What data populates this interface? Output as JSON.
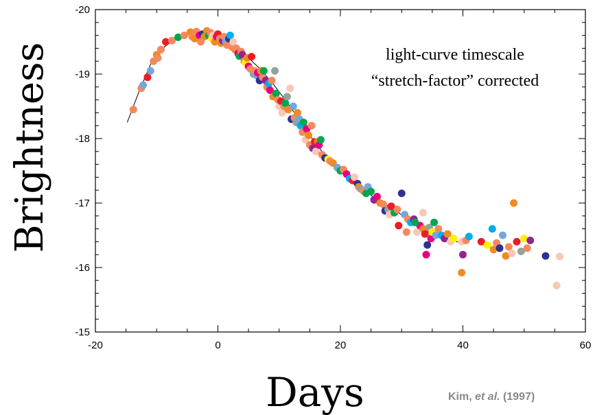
{
  "chart_data": {
    "type": "scatter",
    "xlabel": "Days",
    "ylabel": "Brightness",
    "xlim": [
      -20,
      60
    ],
    "ylim": [
      -20,
      -15
    ],
    "y_inverted": true,
    "xticks": [
      "-20",
      "0",
      "20",
      "40",
      "60"
    ],
    "yticks": [
      "-20",
      "-19",
      "-18",
      "-17",
      "-16",
      "-15"
    ],
    "annotation": [
      "light-curve timescale",
      "“stretch-factor” corrected"
    ],
    "citation": {
      "pre": "Kim, ",
      "emph": "et al.",
      "post": " (1997)"
    },
    "palette": [
      "#f4895f",
      "#e8007e",
      "#f08a24",
      "#00a651",
      "#2e3192",
      "#fff200",
      "#00aeef",
      "#f7c8b4",
      "#92278f",
      "#93a39a",
      "#74a7db",
      "#ed1c24"
    ],
    "template_curve": [
      [
        -14.8,
        -18.25
      ],
      [
        -13,
        -18.7
      ],
      [
        -11,
        -19.15
      ],
      [
        -9,
        -19.4
      ],
      [
        -7,
        -19.55
      ],
      [
        -5,
        -19.62
      ],
      [
        -3,
        -19.63
      ],
      [
        -1,
        -19.6
      ],
      [
        1,
        -19.52
      ],
      [
        3,
        -19.4
      ],
      [
        5,
        -19.25
      ],
      [
        7,
        -19.07
      ],
      [
        9,
        -18.85
      ],
      [
        11,
        -18.6
      ],
      [
        13,
        -18.33
      ],
      [
        15,
        -18.05
      ],
      [
        17,
        -17.8
      ],
      [
        19,
        -17.58
      ],
      [
        21,
        -17.4
      ],
      [
        23,
        -17.25
      ],
      [
        25,
        -17.12
      ],
      [
        27,
        -17.0
      ],
      [
        29,
        -16.88
      ],
      [
        31,
        -16.75
      ],
      [
        33,
        -16.62
      ],
      [
        35,
        -16.52
      ],
      [
        37,
        -16.45
      ],
      [
        39,
        -16.4
      ],
      [
        40.5,
        -16.38
      ]
    ],
    "points": [
      [
        -13.8,
        -18.45,
        0
      ],
      [
        -12.5,
        -18.78,
        0
      ],
      [
        -12.2,
        -18.83,
        10
      ],
      [
        -11.5,
        -18.95,
        11
      ],
      [
        -11,
        -19.05,
        10
      ],
      [
        -10.5,
        -19.2,
        0
      ],
      [
        -10,
        -19.3,
        2
      ],
      [
        -9.8,
        -19.25,
        0
      ],
      [
        -9.3,
        -19.38,
        0
      ],
      [
        -8.5,
        -19.5,
        11
      ],
      [
        -7.5,
        -19.52,
        0
      ],
      [
        -6.5,
        -19.57,
        3
      ],
      [
        -5.5,
        -19.6,
        0
      ],
      [
        -4.5,
        -19.65,
        2
      ],
      [
        -4.2,
        -19.58,
        0
      ],
      [
        -3.8,
        -19.55,
        2
      ],
      [
        -3.5,
        -19.66,
        0
      ],
      [
        -3,
        -19.6,
        1
      ],
      [
        -2.8,
        -19.5,
        0
      ],
      [
        -2.5,
        -19.62,
        4
      ],
      [
        -2.2,
        -19.58,
        2
      ],
      [
        -1.8,
        -19.67,
        2
      ],
      [
        -1.5,
        -19.6,
        3
      ],
      [
        -1.2,
        -19.64,
        0
      ],
      [
        -1,
        -19.55,
        5
      ],
      [
        -0.8,
        -19.6,
        7
      ],
      [
        -0.5,
        -19.5,
        2
      ],
      [
        -0.2,
        -19.58,
        1
      ],
      [
        0,
        -19.62,
        11
      ],
      [
        0.3,
        -19.55,
        0
      ],
      [
        0.5,
        -19.48,
        2
      ],
      [
        0.8,
        -19.52,
        8
      ],
      [
        1,
        -19.58,
        0
      ],
      [
        1.3,
        -19.5,
        10
      ],
      [
        1.5,
        -19.45,
        0
      ],
      [
        1.8,
        -19.55,
        4
      ],
      [
        2,
        -19.6,
        6
      ],
      [
        2.3,
        -19.42,
        0
      ],
      [
        2.5,
        -19.5,
        7
      ],
      [
        2.8,
        -19.38,
        2
      ],
      [
        3,
        -19.4,
        0
      ],
      [
        3.3,
        -19.32,
        1
      ],
      [
        3.5,
        -19.28,
        3
      ],
      [
        3.8,
        -19.35,
        0
      ],
      [
        4,
        -19.3,
        8
      ],
      [
        4.3,
        -19.2,
        0
      ],
      [
        4.5,
        -19.18,
        5
      ],
      [
        4.8,
        -19.25,
        2
      ],
      [
        5,
        -19.12,
        1
      ],
      [
        5.3,
        -19.08,
        0
      ],
      [
        5.5,
        -19.27,
        11
      ],
      [
        5.8,
        -19.0,
        9
      ],
      [
        6,
        -19.05,
        0
      ],
      [
        6.3,
        -18.98,
        10
      ],
      [
        6.5,
        -19.02,
        1
      ],
      [
        6.8,
        -18.9,
        4
      ],
      [
        7,
        -19.05,
        2
      ],
      [
        7.3,
        -18.95,
        0
      ],
      [
        7.5,
        -19.05,
        3
      ],
      [
        7.8,
        -18.9,
        8
      ],
      [
        8,
        -18.8,
        0
      ],
      [
        8.3,
        -18.85,
        6
      ],
      [
        8.5,
        -18.75,
        1
      ],
      [
        8.8,
        -18.9,
        0
      ],
      [
        9,
        -18.65,
        2
      ],
      [
        9.3,
        -19.05,
        9
      ],
      [
        9.5,
        -18.7,
        3
      ],
      [
        9.8,
        -18.6,
        0
      ],
      [
        10,
        -18.5,
        7
      ],
      [
        10.3,
        -18.58,
        11
      ],
      [
        10.5,
        -18.4,
        7
      ],
      [
        10.8,
        -18.5,
        0
      ],
      [
        11,
        -18.55,
        3
      ],
      [
        11.3,
        -18.65,
        9
      ],
      [
        11.5,
        -18.45,
        2
      ],
      [
        11.8,
        -18.78,
        7
      ],
      [
        12,
        -18.3,
        4
      ],
      [
        12.3,
        -18.5,
        10
      ],
      [
        12.5,
        -18.32,
        0
      ],
      [
        12.8,
        -18.25,
        9
      ],
      [
        13,
        -18.4,
        2
      ],
      [
        13.3,
        -18.3,
        10
      ],
      [
        13.5,
        -18.2,
        6
      ],
      [
        13.8,
        -18.1,
        0
      ],
      [
        14,
        -18.25,
        3
      ],
      [
        14.3,
        -17.98,
        7
      ],
      [
        14.5,
        -18.15,
        1
      ],
      [
        14.8,
        -18.05,
        2
      ],
      [
        15,
        -17.9,
        0
      ],
      [
        15.3,
        -18.2,
        0
      ],
      [
        15.5,
        -17.85,
        8
      ],
      [
        15.8,
        -17.95,
        11
      ],
      [
        16,
        -17.8,
        7
      ],
      [
        16.3,
        -17.95,
        2
      ],
      [
        16.5,
        -17.9,
        1
      ],
      [
        16.8,
        -17.98,
        3
      ],
      [
        17,
        -17.75,
        0
      ],
      [
        17.5,
        -17.7,
        4
      ],
      [
        18,
        -17.68,
        5
      ],
      [
        18.3,
        -17.65,
        0
      ],
      [
        18.8,
        -17.62,
        2
      ],
      [
        19.5,
        -17.55,
        10
      ],
      [
        20,
        -17.5,
        3
      ],
      [
        20.5,
        -17.52,
        0
      ],
      [
        21,
        -17.45,
        1
      ],
      [
        21.5,
        -17.38,
        6
      ],
      [
        22,
        -17.35,
        11
      ],
      [
        22.3,
        -17.4,
        7
      ],
      [
        22.8,
        -17.3,
        4
      ],
      [
        23,
        -17.25,
        2
      ],
      [
        23.3,
        -17.22,
        9
      ],
      [
        23.8,
        -17.18,
        0
      ],
      [
        24.2,
        -17.15,
        3
      ],
      [
        24.5,
        -17.25,
        10
      ],
      [
        25,
        -17.18,
        3
      ],
      [
        25.5,
        -17.05,
        8
      ],
      [
        26,
        -17.1,
        1
      ],
      [
        26.5,
        -17.0,
        2
      ],
      [
        27,
        -16.98,
        0
      ],
      [
        27.3,
        -16.88,
        4
      ],
      [
        27.8,
        -16.9,
        9
      ],
      [
        28,
        -16.82,
        7
      ],
      [
        28.3,
        -16.95,
        11
      ],
      [
        28.8,
        -16.85,
        3
      ],
      [
        29.3,
        -16.9,
        0
      ],
      [
        30,
        -17.15,
        4
      ],
      [
        30.5,
        -16.82,
        10
      ],
      [
        31,
        -16.75,
        0
      ],
      [
        31.5,
        -16.7,
        6
      ],
      [
        32,
        -16.75,
        8
      ],
      [
        32.5,
        -16.55,
        7
      ],
      [
        33,
        -16.65,
        1
      ],
      [
        33.5,
        -16.6,
        2
      ],
      [
        33.8,
        -16.52,
        11
      ],
      [
        34.2,
        -16.35,
        4
      ],
      [
        34.5,
        -16.62,
        9
      ],
      [
        34.8,
        -16.45,
        1
      ],
      [
        35,
        -16.55,
        5
      ],
      [
        35.3,
        -16.7,
        3
      ],
      [
        35.6,
        -16.5,
        10
      ],
      [
        36,
        -16.6,
        0
      ],
      [
        36.5,
        -16.5,
        6
      ],
      [
        37,
        -16.45,
        8
      ],
      [
        37.5,
        -16.52,
        2
      ],
      [
        38,
        -16.4,
        7
      ],
      [
        38.5,
        -16.45,
        5
      ],
      [
        39.8,
        -16.4,
        7
      ],
      [
        40,
        -16.2,
        8
      ],
      [
        40.5,
        -16.42,
        0
      ],
      [
        41,
        -16.48,
        6
      ],
      [
        39.8,
        -15.92,
        2
      ],
      [
        43,
        -16.4,
        11
      ],
      [
        44,
        -16.35,
        5
      ],
      [
        44.8,
        -16.6,
        6
      ],
      [
        45,
        -16.28,
        2
      ],
      [
        45.5,
        -16.38,
        0
      ],
      [
        46,
        -16.3,
        4
      ],
      [
        46.5,
        -16.5,
        10
      ],
      [
        47,
        -16.18,
        2
      ],
      [
        47.5,
        -16.32,
        0
      ],
      [
        48,
        -16.22,
        7
      ],
      [
        48.3,
        -17.0,
        2
      ],
      [
        48.8,
        -16.4,
        11
      ],
      [
        49.5,
        -16.25,
        9
      ],
      [
        50,
        -16.45,
        5
      ],
      [
        50.5,
        -16.3,
        0
      ],
      [
        51,
        -16.42,
        8
      ],
      [
        53.5,
        -16.18,
        4
      ],
      [
        55.3,
        -15.72,
        7
      ],
      [
        55.8,
        -16.17,
        7
      ],
      [
        34,
        -16.2,
        1
      ],
      [
        33.5,
        -16.85,
        7
      ],
      [
        30.8,
        -16.55,
        0
      ],
      [
        32.2,
        -16.7,
        3
      ],
      [
        29.5,
        -16.65,
        11
      ]
    ]
  }
}
